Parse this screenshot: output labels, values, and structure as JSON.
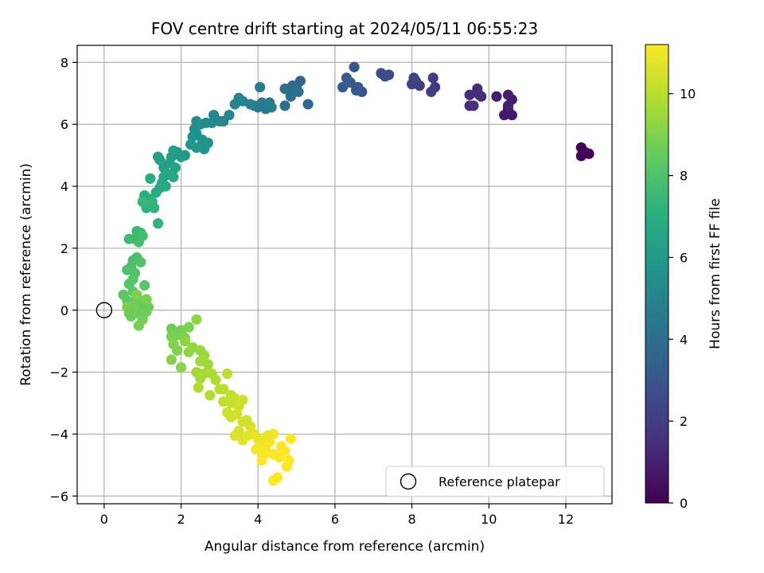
{
  "chart_data": {
    "type": "scatter",
    "title": "FOV centre drift starting at 2024/05/11 06:55:23",
    "xlabel": "Angular distance from reference (arcmin)",
    "ylabel": "Rotation from reference (arcmin)",
    "xlim": [
      -0.7,
      13.2
    ],
    "ylim": [
      -6.25,
      8.55
    ],
    "xticks": [
      0,
      2,
      4,
      6,
      8,
      10,
      12
    ],
    "yticks": [
      -6,
      -4,
      -2,
      0,
      2,
      4,
      6,
      8
    ],
    "grid": true,
    "colormap": "viridis",
    "colorbar": {
      "label": "Hours from first FF file",
      "range": [
        0,
        11.2
      ],
      "ticks": [
        0,
        2,
        4,
        6,
        8,
        10
      ]
    },
    "legend": {
      "placement": "lower-right",
      "entries": [
        "Reference platepar"
      ]
    },
    "reference_point": {
      "x": 0,
      "y": 0,
      "label": "Reference platepar"
    },
    "points": [
      [
        12.4,
        5.25,
        0.0
      ],
      [
        12.6,
        5.05,
        0.05
      ],
      [
        12.4,
        4.98,
        0.1
      ],
      [
        12.5,
        5.1,
        0.15
      ],
      [
        10.6,
        6.3,
        0.7
      ],
      [
        10.4,
        6.3,
        0.75
      ],
      [
        10.5,
        6.5,
        0.8
      ],
      [
        10.6,
        6.8,
        0.85
      ],
      [
        10.5,
        6.95,
        0.9
      ],
      [
        10.2,
        6.9,
        0.95
      ],
      [
        10.5,
        6.6,
        1.0
      ],
      [
        9.8,
        6.9,
        1.3
      ],
      [
        9.7,
        7.15,
        1.35
      ],
      [
        9.5,
        6.95,
        1.4
      ],
      [
        9.5,
        6.6,
        1.45
      ],
      [
        9.6,
        6.6,
        1.5
      ],
      [
        9.75,
        6.95,
        1.55
      ],
      [
        8.6,
        7.2,
        1.9
      ],
      [
        8.5,
        7.05,
        1.95
      ],
      [
        8.55,
        7.5,
        2.0
      ],
      [
        8.2,
        7.25,
        2.05
      ],
      [
        8.05,
        7.5,
        2.1
      ],
      [
        8.0,
        7.3,
        2.15
      ],
      [
        8.1,
        7.4,
        2.2
      ],
      [
        7.4,
        7.6,
        2.5
      ],
      [
        7.2,
        7.65,
        2.55
      ],
      [
        7.3,
        7.55,
        2.6
      ],
      [
        6.7,
        7.05,
        2.9
      ],
      [
        6.6,
        7.2,
        2.95
      ],
      [
        6.5,
        7.85,
        3.0
      ],
      [
        6.4,
        7.35,
        3.05
      ],
      [
        6.3,
        7.5,
        3.1
      ],
      [
        6.2,
        7.2,
        3.15
      ],
      [
        6.55,
        7.1,
        3.2
      ],
      [
        5.3,
        6.65,
        3.7
      ],
      [
        5.1,
        7.4,
        3.75
      ],
      [
        5.0,
        7.2,
        3.8
      ],
      [
        4.9,
        7.25,
        3.85
      ],
      [
        4.8,
        7.1,
        3.9
      ],
      [
        4.7,
        7.15,
        3.95
      ],
      [
        4.85,
        6.9,
        4.0
      ],
      [
        4.7,
        6.6,
        4.05
      ],
      [
        4.9,
        7.05,
        4.1
      ],
      [
        5.05,
        7.05,
        4.15
      ],
      [
        4.3,
        6.7,
        4.4
      ],
      [
        4.2,
        6.5,
        4.45
      ],
      [
        4.1,
        6.7,
        4.5
      ],
      [
        4.0,
        6.55,
        4.55
      ],
      [
        3.9,
        6.6,
        4.6
      ],
      [
        4.05,
        7.2,
        4.65
      ],
      [
        4.25,
        6.65,
        4.7
      ],
      [
        4.35,
        6.55,
        4.75
      ],
      [
        3.8,
        6.65,
        4.9
      ],
      [
        3.6,
        6.75,
        4.95
      ],
      [
        3.5,
        6.85,
        5.0
      ],
      [
        3.4,
        6.65,
        5.05
      ],
      [
        3.25,
        6.3,
        5.1
      ],
      [
        3.1,
        6.1,
        5.15
      ],
      [
        3.0,
        6.1,
        5.2
      ],
      [
        2.85,
        6.3,
        5.25
      ],
      [
        2.8,
        6.05,
        5.3
      ],
      [
        2.65,
        6.05,
        5.4
      ],
      [
        2.5,
        6.0,
        5.45
      ],
      [
        2.4,
        6.1,
        5.5
      ],
      [
        2.35,
        5.85,
        5.55
      ],
      [
        2.4,
        5.7,
        5.6
      ],
      [
        2.3,
        5.6,
        5.65
      ],
      [
        2.55,
        5.5,
        5.7
      ],
      [
        2.7,
        5.4,
        5.75
      ],
      [
        2.6,
        5.2,
        5.8
      ],
      [
        2.4,
        5.25,
        5.85
      ],
      [
        2.25,
        5.35,
        5.9
      ],
      [
        2.1,
        5.0,
        6.0
      ],
      [
        2.0,
        4.95,
        6.05
      ],
      [
        1.9,
        5.1,
        6.1
      ],
      [
        1.8,
        5.15,
        6.15
      ],
      [
        1.75,
        4.95,
        6.2
      ],
      [
        1.7,
        4.75,
        6.25
      ],
      [
        1.55,
        4.6,
        6.3
      ],
      [
        1.45,
        4.85,
        6.35
      ],
      [
        1.4,
        4.95,
        6.4
      ],
      [
        1.85,
        4.6,
        6.45
      ],
      [
        1.65,
        4.4,
        6.55
      ],
      [
        1.55,
        4.3,
        6.6
      ],
      [
        1.5,
        4.1,
        6.65
      ],
      [
        1.8,
        4.3,
        6.7
      ],
      [
        1.6,
        4.0,
        6.75
      ],
      [
        1.45,
        3.95,
        6.8
      ],
      [
        1.35,
        3.8,
        6.85
      ],
      [
        1.2,
        4.25,
        6.9
      ],
      [
        1.05,
        3.7,
        7.0
      ],
      [
        1.15,
        3.6,
        7.05
      ],
      [
        1.2,
        3.45,
        7.1
      ],
      [
        1.1,
        3.3,
        7.15
      ],
      [
        1.3,
        3.3,
        7.2
      ],
      [
        1.25,
        3.5,
        7.25
      ],
      [
        1.4,
        2.8,
        7.3
      ],
      [
        1.0,
        3.5,
        7.35
      ],
      [
        0.95,
        2.5,
        7.5
      ],
      [
        0.85,
        2.55,
        7.55
      ],
      [
        0.8,
        2.3,
        7.6
      ],
      [
        0.65,
        2.3,
        7.65
      ],
      [
        1.0,
        2.4,
        7.7
      ],
      [
        0.9,
        2.2,
        7.75
      ],
      [
        0.85,
        1.7,
        7.85
      ],
      [
        0.75,
        1.6,
        7.9
      ],
      [
        0.7,
        1.4,
        7.95
      ],
      [
        0.6,
        1.3,
        8.0
      ],
      [
        0.8,
        1.2,
        8.05
      ],
      [
        0.95,
        1.55,
        8.1
      ],
      [
        0.75,
        1.0,
        8.15
      ],
      [
        0.65,
        0.85,
        8.2
      ],
      [
        1.05,
        0.8,
        8.25
      ],
      [
        0.75,
        0.6,
        8.3
      ],
      [
        0.5,
        0.5,
        8.35
      ],
      [
        0.6,
        0.3,
        8.4
      ],
      [
        0.8,
        0.3,
        8.45
      ],
      [
        0.95,
        0.1,
        8.5
      ],
      [
        1.05,
        0.3,
        8.55
      ],
      [
        1.15,
        0.1,
        8.6
      ],
      [
        0.75,
        0.0,
        8.65
      ],
      [
        0.9,
        -0.1,
        8.7
      ],
      [
        0.7,
        -0.2,
        8.75
      ],
      [
        1.0,
        -0.3,
        8.8
      ],
      [
        0.9,
        -0.5,
        8.85
      ],
      [
        0.6,
        0.1,
        8.9
      ],
      [
        1.1,
        0.35,
        8.95
      ],
      [
        0.85,
        0.5,
        9.0
      ],
      [
        0.65,
        -0.1,
        8.6
      ],
      [
        1.1,
        -0.05,
        8.7
      ],
      [
        0.8,
        0.15,
        8.75
      ],
      [
        1.75,
        -0.6,
        8.7
      ],
      [
        1.9,
        -0.8,
        8.75
      ],
      [
        2.0,
        -0.65,
        8.8
      ],
      [
        2.1,
        -0.9,
        8.85
      ],
      [
        2.2,
        -0.55,
        8.9
      ],
      [
        1.75,
        -0.85,
        8.95
      ],
      [
        1.8,
        -1.1,
        9.0
      ],
      [
        1.9,
        -1.3,
        9.05
      ],
      [
        1.75,
        -1.6,
        9.1
      ],
      [
        2.0,
        -1.85,
        9.15
      ],
      [
        2.1,
        -1.0,
        9.2
      ],
      [
        2.2,
        -1.35,
        9.25
      ],
      [
        2.4,
        -0.3,
        9.3
      ],
      [
        2.3,
        -1.2,
        9.35
      ],
      [
        2.5,
        -1.3,
        9.4
      ],
      [
        2.6,
        -1.45,
        9.45
      ],
      [
        2.7,
        -1.75,
        9.5
      ],
      [
        2.5,
        -1.65,
        9.55
      ],
      [
        2.4,
        -2.0,
        9.6
      ],
      [
        2.5,
        -2.2,
        9.65
      ],
      [
        2.6,
        -2.05,
        9.7
      ],
      [
        2.8,
        -2.05,
        9.75
      ],
      [
        2.9,
        -2.25,
        9.8
      ],
      [
        2.45,
        -2.5,
        9.85
      ],
      [
        2.75,
        -2.75,
        9.9
      ],
      [
        3.1,
        -2.55,
        9.95
      ],
      [
        3.2,
        -2.05,
        10.0
      ],
      [
        3.0,
        -2.55,
        10.05
      ],
      [
        3.3,
        -2.75,
        10.1
      ],
      [
        3.1,
        -2.95,
        10.15
      ],
      [
        3.3,
        -3.0,
        10.2
      ],
      [
        3.4,
        -2.85,
        10.25
      ],
      [
        3.5,
        -3.1,
        10.3
      ],
      [
        3.6,
        -2.9,
        10.35
      ],
      [
        3.2,
        -3.3,
        10.4
      ],
      [
        3.45,
        -3.35,
        10.45
      ],
      [
        3.6,
        -3.6,
        10.5
      ],
      [
        3.5,
        -3.9,
        10.55
      ],
      [
        3.8,
        -3.75,
        10.6
      ],
      [
        3.4,
        -4.05,
        10.65
      ],
      [
        3.6,
        -4.2,
        10.7
      ],
      [
        3.75,
        -4.05,
        10.75
      ],
      [
        3.9,
        -4.0,
        10.8
      ],
      [
        4.0,
        -4.15,
        10.85
      ],
      [
        4.1,
        -4.25,
        10.9
      ],
      [
        4.0,
        -4.45,
        10.95
      ],
      [
        4.2,
        -4.5,
        11.0
      ],
      [
        4.3,
        -4.25,
        11.05
      ],
      [
        4.4,
        -4.0,
        11.1
      ],
      [
        4.15,
        -4.65,
        11.15
      ],
      [
        4.1,
        -4.85,
        11.2
      ],
      [
        4.4,
        -4.65,
        11.25
      ],
      [
        4.55,
        -4.75,
        11.3
      ],
      [
        4.7,
        -4.55,
        11.35
      ],
      [
        4.85,
        -4.15,
        11.35
      ],
      [
        4.8,
        -4.85,
        11.4
      ],
      [
        4.75,
        -5.05,
        11.4
      ],
      [
        4.5,
        -5.4,
        11.45
      ],
      [
        4.4,
        -5.5,
        11.45
      ],
      [
        4.6,
        -4.4,
        11.2
      ],
      [
        3.95,
        -4.5,
        11.1
      ],
      [
        4.25,
        -4.05,
        10.9
      ],
      [
        3.3,
        -3.45,
        10.35
      ],
      [
        3.7,
        -3.55,
        10.45
      ]
    ]
  }
}
